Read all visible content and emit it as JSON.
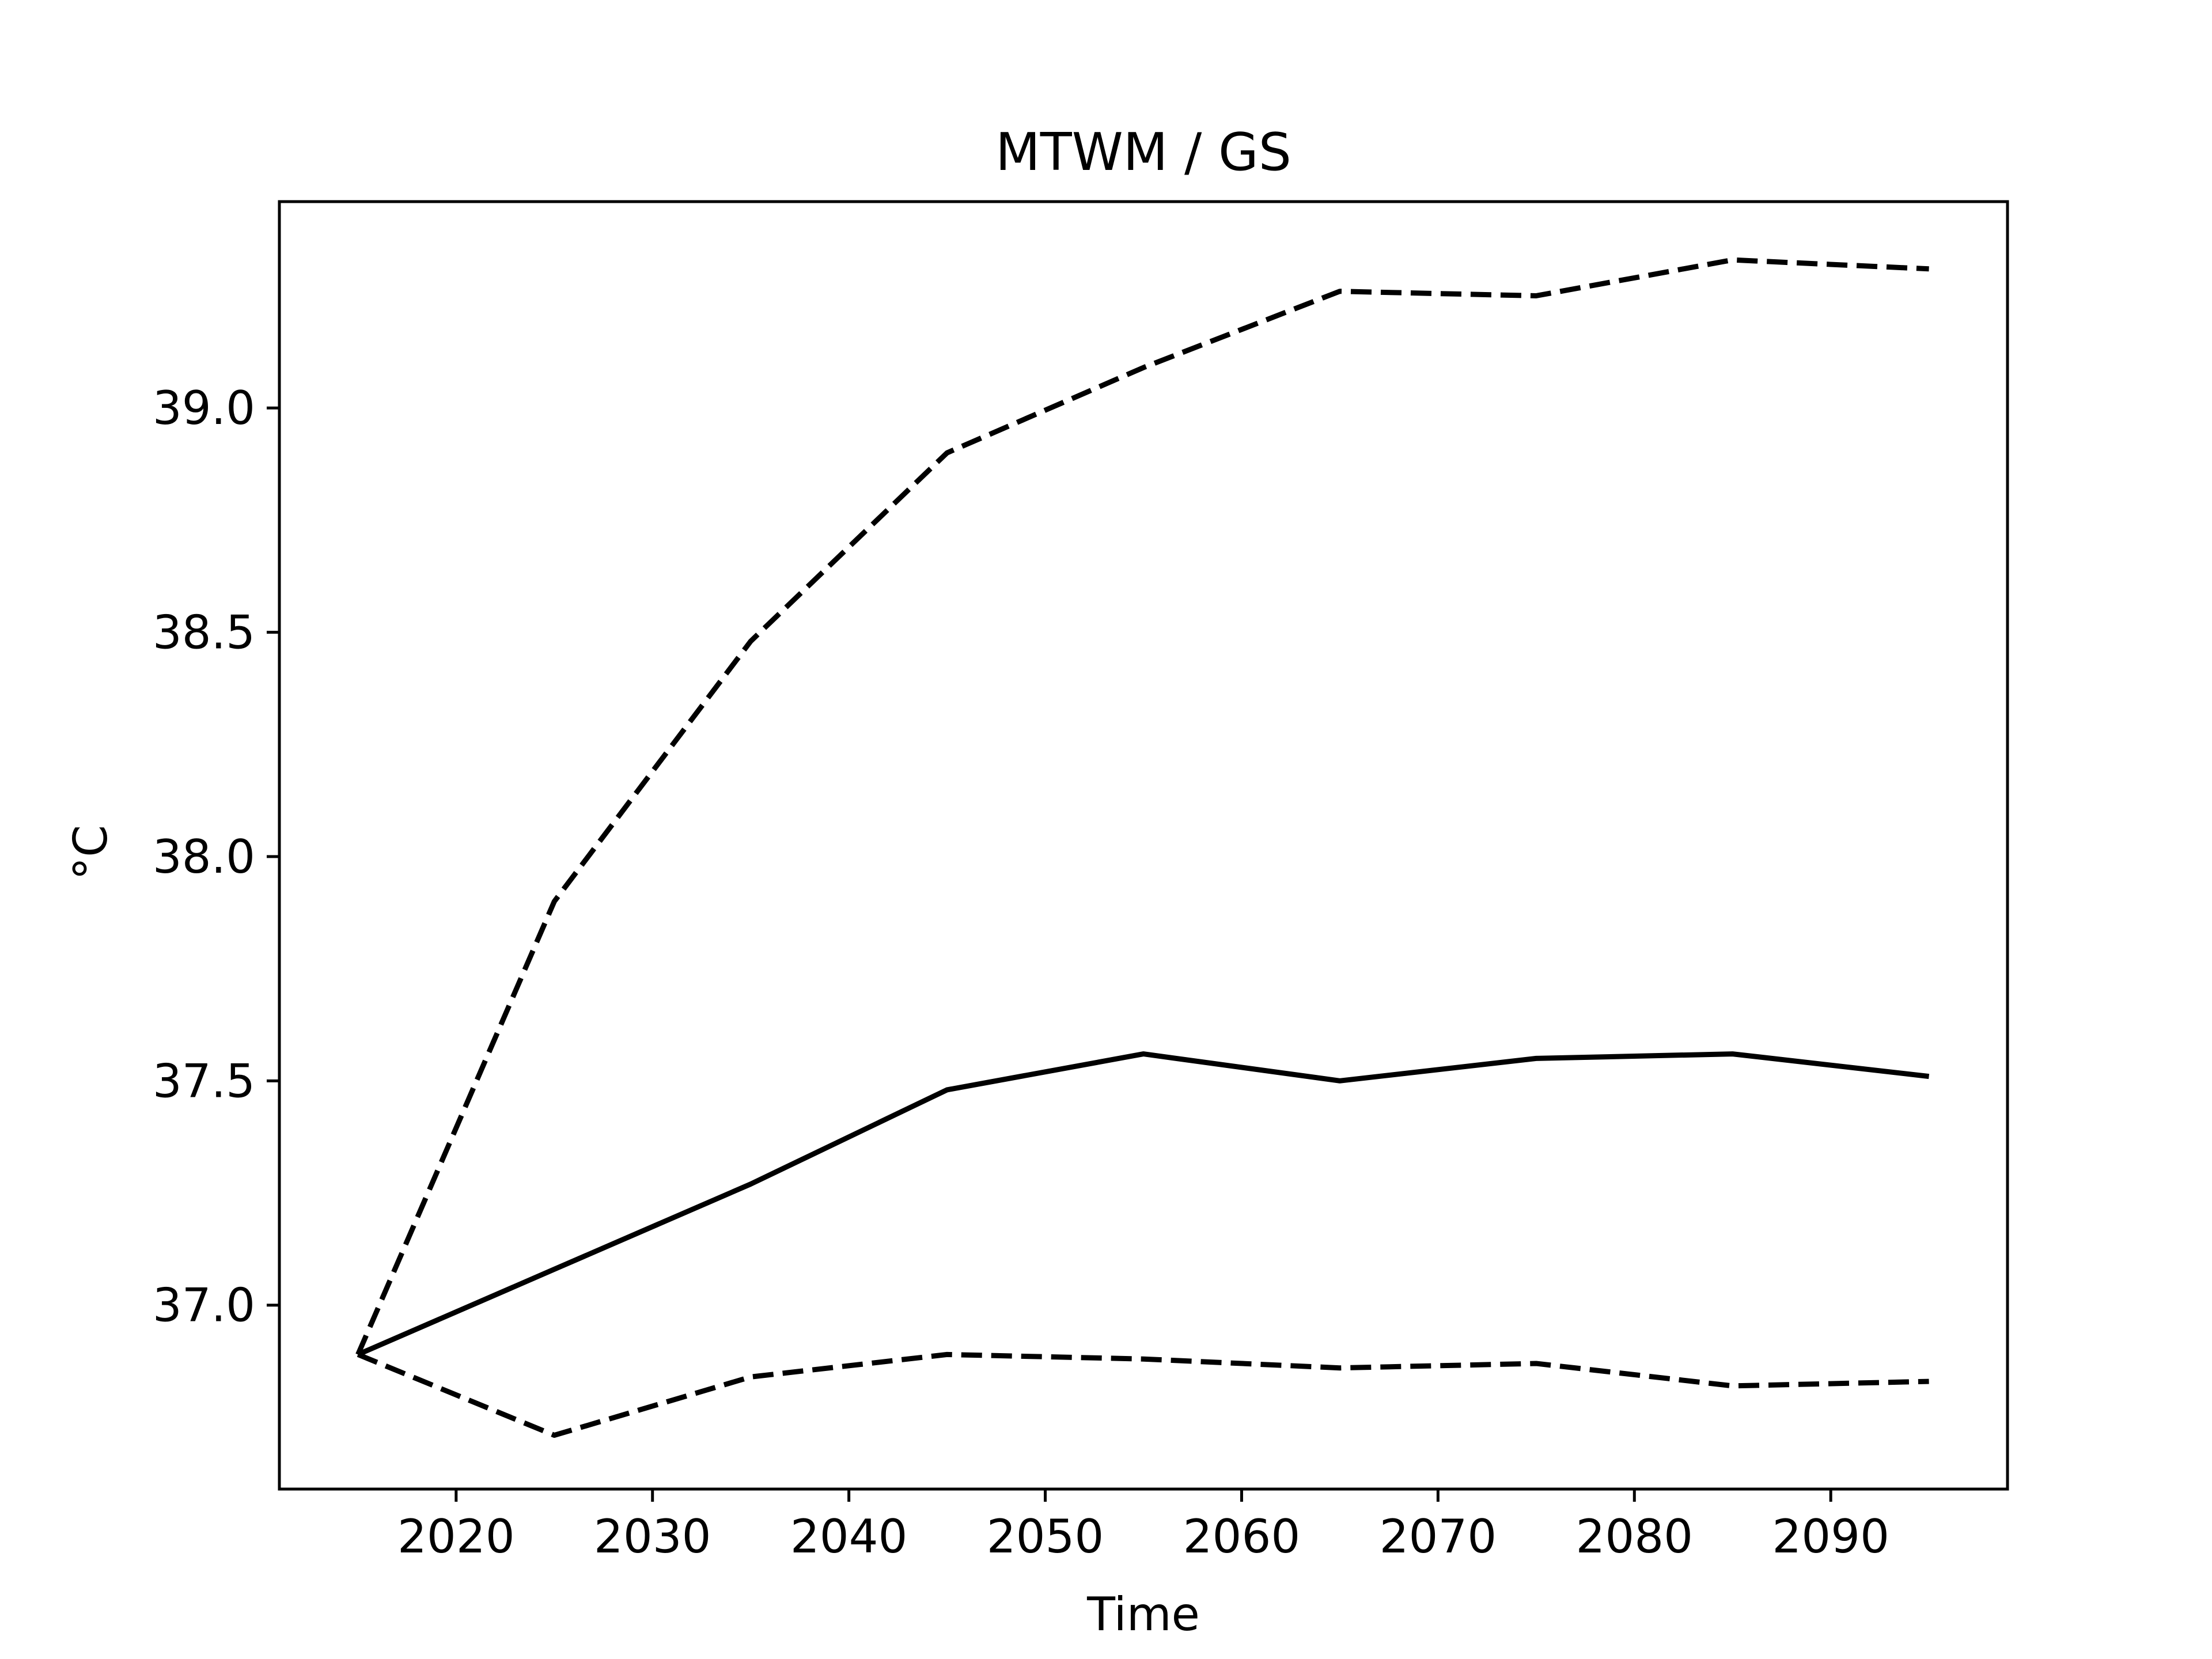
{
  "chart_data": {
    "type": "line",
    "title": "MTWM / GS",
    "xlabel": "Time",
    "ylabel": "°C",
    "xlim": [
      2011,
      2099
    ],
    "ylim": [
      36.59,
      39.46
    ],
    "x_ticks": [
      2020,
      2030,
      2040,
      2050,
      2060,
      2070,
      2080,
      2090
    ],
    "y_ticks": [
      37.0,
      37.5,
      38.0,
      38.5,
      39.0
    ],
    "y_tick_labels": [
      "37.0",
      "37.5",
      "38.0",
      "38.5",
      "39.0"
    ],
    "x_tick_labels": [
      "2020",
      "2030",
      "2040",
      "2050",
      "2060",
      "2070",
      "2080",
      "2090"
    ],
    "grid": false,
    "line_color": "#000000",
    "x": [
      2015,
      2025,
      2035,
      2045,
      2055,
      2065,
      2075,
      2085,
      2095
    ],
    "series": [
      {
        "style": "dashed",
        "values": [
          36.89,
          37.9,
          38.48,
          38.9,
          39.09,
          39.26,
          39.25,
          39.33,
          39.31
        ]
      },
      {
        "style": "solid",
        "values": [
          36.89,
          37.08,
          37.27,
          37.48,
          37.56,
          37.5,
          37.55,
          37.56,
          37.51
        ]
      },
      {
        "style": "dashed",
        "values": [
          36.89,
          36.71,
          36.84,
          36.89,
          36.88,
          36.86,
          36.87,
          36.82,
          36.83
        ]
      }
    ]
  }
}
